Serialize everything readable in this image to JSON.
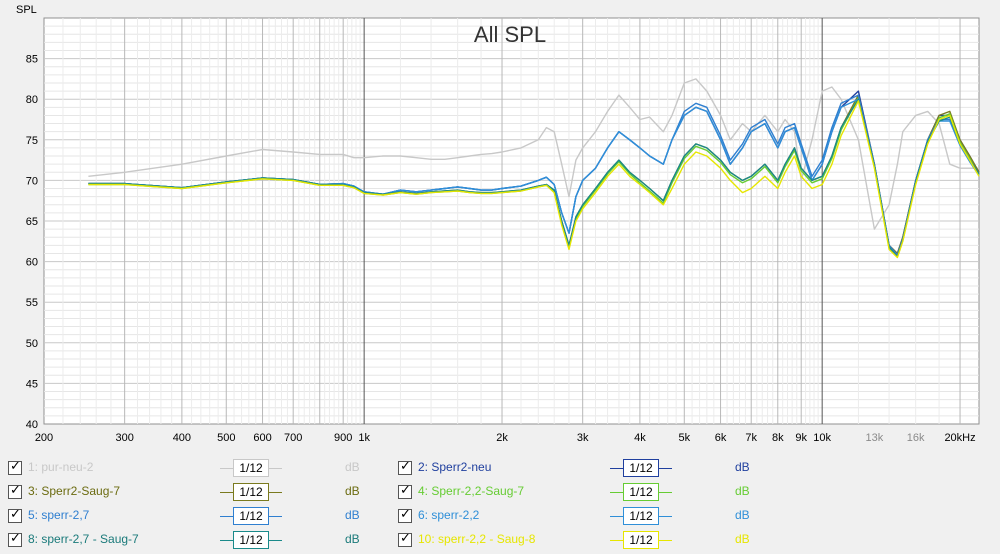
{
  "chart_data": {
    "type": "line",
    "title": "All SPL",
    "ylabel": "SPL",
    "xlabel": "",
    "xscale": "log",
    "xlim": [
      200,
      22000
    ],
    "ylim": [
      40,
      90
    ],
    "grid": true,
    "x_tick_labels": [
      {
        "value": 200,
        "label": "200"
      },
      {
        "value": 300,
        "label": "300"
      },
      {
        "value": 400,
        "label": "400"
      },
      {
        "value": 500,
        "label": "500"
      },
      {
        "value": 600,
        "label": "600"
      },
      {
        "value": 700,
        "label": "700"
      },
      {
        "value": 900,
        "label": "900"
      },
      {
        "value": 1000,
        "label": "1k"
      },
      {
        "value": 2000,
        "label": "2k"
      },
      {
        "value": 3000,
        "label": "3k"
      },
      {
        "value": 4000,
        "label": "4k"
      },
      {
        "value": 5000,
        "label": "5k"
      },
      {
        "value": 6000,
        "label": "6k"
      },
      {
        "value": 7000,
        "label": "7k"
      },
      {
        "value": 8000,
        "label": "8k"
      },
      {
        "value": 9000,
        "label": "9k"
      },
      {
        "value": 10000,
        "label": "10k"
      },
      {
        "value": 13000,
        "label": "13k",
        "muted": true
      },
      {
        "value": 16000,
        "label": "16k",
        "muted": true
      },
      {
        "value": 20000,
        "label": "20kHz"
      }
    ],
    "y_ticks": [
      45,
      50,
      55,
      60,
      65,
      70,
      75,
      80,
      85
    ],
    "y_tick_labels": [
      "40",
      "45",
      "50",
      "55",
      "60",
      "65",
      "70",
      "75",
      "80",
      "85"
    ],
    "x": [
      250,
      300,
      400,
      500,
      600,
      700,
      800,
      900,
      950,
      1000,
      1100,
      1200,
      1300,
      1400,
      1500,
      1600,
      1700,
      1800,
      1900,
      2000,
      2200,
      2400,
      2500,
      2600,
      2700,
      2800,
      2900,
      3000,
      3200,
      3400,
      3600,
      3800,
      4000,
      4200,
      4500,
      4700,
      5000,
      5300,
      5600,
      6000,
      6300,
      6700,
      7000,
      7500,
      8000,
      8300,
      8700,
      9000,
      9500,
      10000,
      10500,
      11000,
      12000,
      13000,
      14000,
      14600,
      15000,
      16000,
      17000,
      18000,
      19000,
      20000,
      21000,
      22000
    ],
    "series": [
      {
        "name": "1: pur-neu-2",
        "color": "#c8c8c8",
        "values": [
          70.5,
          71.0,
          72.0,
          73.0,
          73.8,
          73.5,
          73.2,
          73.2,
          72.8,
          72.8,
          73.0,
          73.0,
          72.8,
          72.6,
          72.6,
          72.8,
          73.0,
          73.2,
          73.3,
          73.5,
          74.0,
          75.0,
          76.5,
          76.0,
          72.0,
          68.0,
          72.5,
          74.0,
          76.0,
          78.5,
          80.5,
          79.0,
          77.5,
          77.8,
          76.0,
          78.0,
          82.0,
          82.5,
          81.0,
          78.0,
          75.0,
          77.0,
          76.0,
          78.0,
          76.0,
          77.5,
          76.0,
          70.0,
          75.0,
          81.0,
          81.5,
          80.0,
          75.0,
          64.0,
          67.0,
          72.0,
          76.0,
          78.0,
          78.5,
          77.0,
          72.0,
          71.5,
          71.5,
          71.5
        ]
      },
      {
        "name": "2: Sperr2-neu",
        "color": "#1f3f9e",
        "values": [
          69.6,
          69.6,
          69.1,
          69.8,
          70.3,
          70.1,
          69.5,
          69.6,
          69.3,
          68.6,
          68.3,
          68.8,
          68.6,
          68.8,
          69.0,
          69.2,
          69.0,
          68.8,
          68.8,
          69.0,
          69.3,
          70.0,
          70.4,
          69.5,
          66.0,
          63.5,
          68.0,
          70.0,
          71.5,
          74.0,
          76.0,
          75.0,
          74.0,
          73.0,
          72.0,
          75.0,
          78.0,
          79.0,
          78.5,
          75.0,
          72.0,
          74.0,
          76.0,
          77.0,
          74.0,
          76.0,
          76.5,
          74.0,
          70.0,
          72.0,
          76.0,
          79.0,
          81.0,
          72.0,
          62.0,
          61.0,
          63.0,
          70.0,
          75.0,
          78.0,
          78.0,
          75.0,
          73.0,
          71.0
        ]
      },
      {
        "name": "3: Sperr2-Saug-7",
        "color": "#7a7a1e",
        "values": [
          69.6,
          69.6,
          69.1,
          69.8,
          70.3,
          70.1,
          69.5,
          69.5,
          69.2,
          68.5,
          68.3,
          68.6,
          68.4,
          68.6,
          68.7,
          68.8,
          68.6,
          68.5,
          68.5,
          68.6,
          68.8,
          69.3,
          69.5,
          68.8,
          65.0,
          62.0,
          65.5,
          67.0,
          69.0,
          71.0,
          72.5,
          71.0,
          70.0,
          69.0,
          67.5,
          70.0,
          73.0,
          74.5,
          74.0,
          72.5,
          71.0,
          70.0,
          70.5,
          72.0,
          70.0,
          72.0,
          74.0,
          71.5,
          70.0,
          70.5,
          73.0,
          76.5,
          80.5,
          72.0,
          62.0,
          61.0,
          63.0,
          70.0,
          75.0,
          78.0,
          78.5,
          75.0,
          73.0,
          71.0
        ]
      },
      {
        "name": "4: Sperr-2,2-Saug-7",
        "color": "#66cc33",
        "values": [
          69.5,
          69.5,
          69.0,
          69.7,
          70.2,
          70.0,
          69.4,
          69.4,
          69.1,
          68.4,
          68.2,
          68.5,
          68.3,
          68.5,
          68.6,
          68.7,
          68.5,
          68.4,
          68.4,
          68.5,
          68.7,
          69.2,
          69.4,
          68.6,
          64.8,
          61.8,
          65.2,
          66.8,
          68.8,
          70.8,
          72.3,
          70.8,
          69.7,
          68.7,
          67.2,
          69.7,
          72.7,
          74.2,
          73.7,
          72.2,
          70.7,
          69.7,
          70.2,
          71.7,
          69.7,
          71.7,
          73.7,
          71.2,
          69.7,
          70.2,
          72.7,
          76.2,
          80.2,
          71.7,
          61.7,
          60.7,
          62.7,
          69.7,
          74.7,
          77.7,
          78.2,
          74.7,
          72.7,
          70.7
        ]
      },
      {
        "name": "5: sperr-2,7",
        "color": "#2f7fd0",
        "values": [
          69.6,
          69.6,
          69.1,
          69.8,
          70.3,
          70.1,
          69.5,
          69.6,
          69.3,
          68.6,
          68.3,
          68.8,
          68.6,
          68.8,
          69.0,
          69.2,
          69.0,
          68.8,
          68.8,
          69.0,
          69.3,
          70.0,
          70.4,
          69.5,
          66.0,
          63.5,
          68.0,
          70.0,
          71.5,
          74.0,
          76.0,
          75.0,
          74.0,
          73.0,
          72.0,
          75.0,
          78.5,
          79.5,
          79.0,
          75.5,
          72.5,
          74.5,
          76.5,
          77.5,
          74.5,
          76.5,
          77.0,
          74.5,
          70.5,
          72.5,
          76.5,
          79.5,
          80.5,
          72.0,
          62.0,
          60.8,
          62.8,
          70.0,
          75.0,
          77.5,
          77.5,
          74.5,
          72.5,
          70.8
        ]
      },
      {
        "name": "6: sperr-2,2",
        "color": "#2f8fd8",
        "values": [
          69.6,
          69.6,
          69.1,
          69.8,
          70.3,
          70.1,
          69.5,
          69.6,
          69.3,
          68.6,
          68.3,
          68.8,
          68.6,
          68.8,
          69.0,
          69.2,
          69.0,
          68.8,
          68.8,
          69.0,
          69.3,
          70.0,
          70.4,
          69.5,
          66.0,
          63.5,
          68.0,
          70.0,
          71.5,
          74.0,
          76.0,
          75.0,
          74.0,
          73.0,
          72.0,
          75.0,
          78.0,
          79.0,
          78.5,
          75.0,
          72.0,
          74.0,
          76.0,
          77.0,
          74.0,
          76.0,
          76.5,
          74.0,
          70.0,
          72.0,
          76.0,
          79.0,
          80.0,
          71.8,
          61.8,
          60.6,
          62.6,
          69.8,
          74.8,
          77.3,
          77.3,
          74.3,
          72.3,
          70.6
        ]
      },
      {
        "name": "8: sperr-2,7 - Saug-7",
        "color": "#1a8a8a",
        "values": [
          69.6,
          69.6,
          69.1,
          69.8,
          70.3,
          70.1,
          69.5,
          69.5,
          69.2,
          68.5,
          68.3,
          68.6,
          68.4,
          68.6,
          68.7,
          68.8,
          68.6,
          68.5,
          68.5,
          68.6,
          68.8,
          69.3,
          69.5,
          68.8,
          65.0,
          62.0,
          65.5,
          67.0,
          69.0,
          71.0,
          72.5,
          71.0,
          70.0,
          69.0,
          67.5,
          70.0,
          73.0,
          74.5,
          74.0,
          72.5,
          71.0,
          70.0,
          70.5,
          72.0,
          70.0,
          72.0,
          74.0,
          71.5,
          70.0,
          70.5,
          73.0,
          76.5,
          80.0,
          71.8,
          61.8,
          60.6,
          62.6,
          69.8,
          74.8,
          77.3,
          77.8,
          74.5,
          72.5,
          70.8
        ]
      },
      {
        "name": "10: sperr-2,2 - Saug-8",
        "color": "#e6e600",
        "values": [
          69.5,
          69.5,
          69.0,
          69.7,
          70.2,
          70.0,
          69.4,
          69.4,
          69.1,
          68.4,
          68.2,
          68.5,
          68.3,
          68.5,
          68.6,
          68.7,
          68.5,
          68.4,
          68.4,
          68.5,
          68.7,
          69.2,
          69.4,
          68.5,
          64.5,
          61.5,
          65.0,
          66.5,
          68.5,
          70.5,
          72.0,
          70.5,
          69.5,
          68.5,
          67.0,
          69.0,
          72.0,
          73.5,
          73.0,
          71.5,
          70.0,
          68.5,
          69.0,
          70.5,
          69.0,
          71.0,
          73.0,
          70.5,
          69.0,
          69.5,
          72.0,
          75.5,
          79.8,
          71.5,
          61.5,
          60.5,
          62.5,
          69.5,
          74.5,
          77.5,
          78.0,
          74.5,
          72.5,
          70.5
        ]
      }
    ]
  },
  "legend": [
    {
      "label": "1: pur-neu-2",
      "color": "#c8c8c8",
      "line": "#c8c8c8",
      "unit": "dB",
      "unit_color": "#c8c8c8",
      "smoothing": "1/12"
    },
    {
      "label": "2: Sperr2-neu",
      "color": "#1f3f9e",
      "line": "#1f3f9e",
      "unit": "dB",
      "unit_color": "#1f3f9e",
      "smoothing": "1/12"
    },
    {
      "label": "3: Sperr2-Saug-7",
      "color": "#6b6b10",
      "line": "#7a7a1e",
      "unit": "dB",
      "unit_color": "#6b6b10",
      "smoothing": "1/12"
    },
    {
      "label": "4: Sperr-2,2-Saug-7",
      "color": "#66cc33",
      "line": "#66cc33",
      "unit": "dB",
      "unit_color": "#66cc33",
      "smoothing": "1/12"
    },
    {
      "label": "5: sperr-2,7",
      "color": "#2f7fd0",
      "line": "#2f7fd0",
      "unit": "dB",
      "unit_color": "#2f7fd0",
      "smoothing": "1/12"
    },
    {
      "label": "6: sperr-2,2",
      "color": "#2f8fd8",
      "line": "#2f8fd8",
      "unit": "dB",
      "unit_color": "#2f8fd8",
      "smoothing": "1/12"
    },
    {
      "label": "8: sperr-2,7 - Saug-7",
      "color": "#1a7a7a",
      "line": "#1a8a8a",
      "unit": "dB",
      "unit_color": "#1a7a7a",
      "smoothing": "1/12"
    },
    {
      "label": "10: sperr-2,2 - Saug-8",
      "color": "#e6e600",
      "line": "#e6e600",
      "unit": "dB",
      "unit_color": "#e6e600",
      "smoothing": "1/12"
    }
  ],
  "icons": {
    "checkbox": "checkbox-checked-icon"
  }
}
